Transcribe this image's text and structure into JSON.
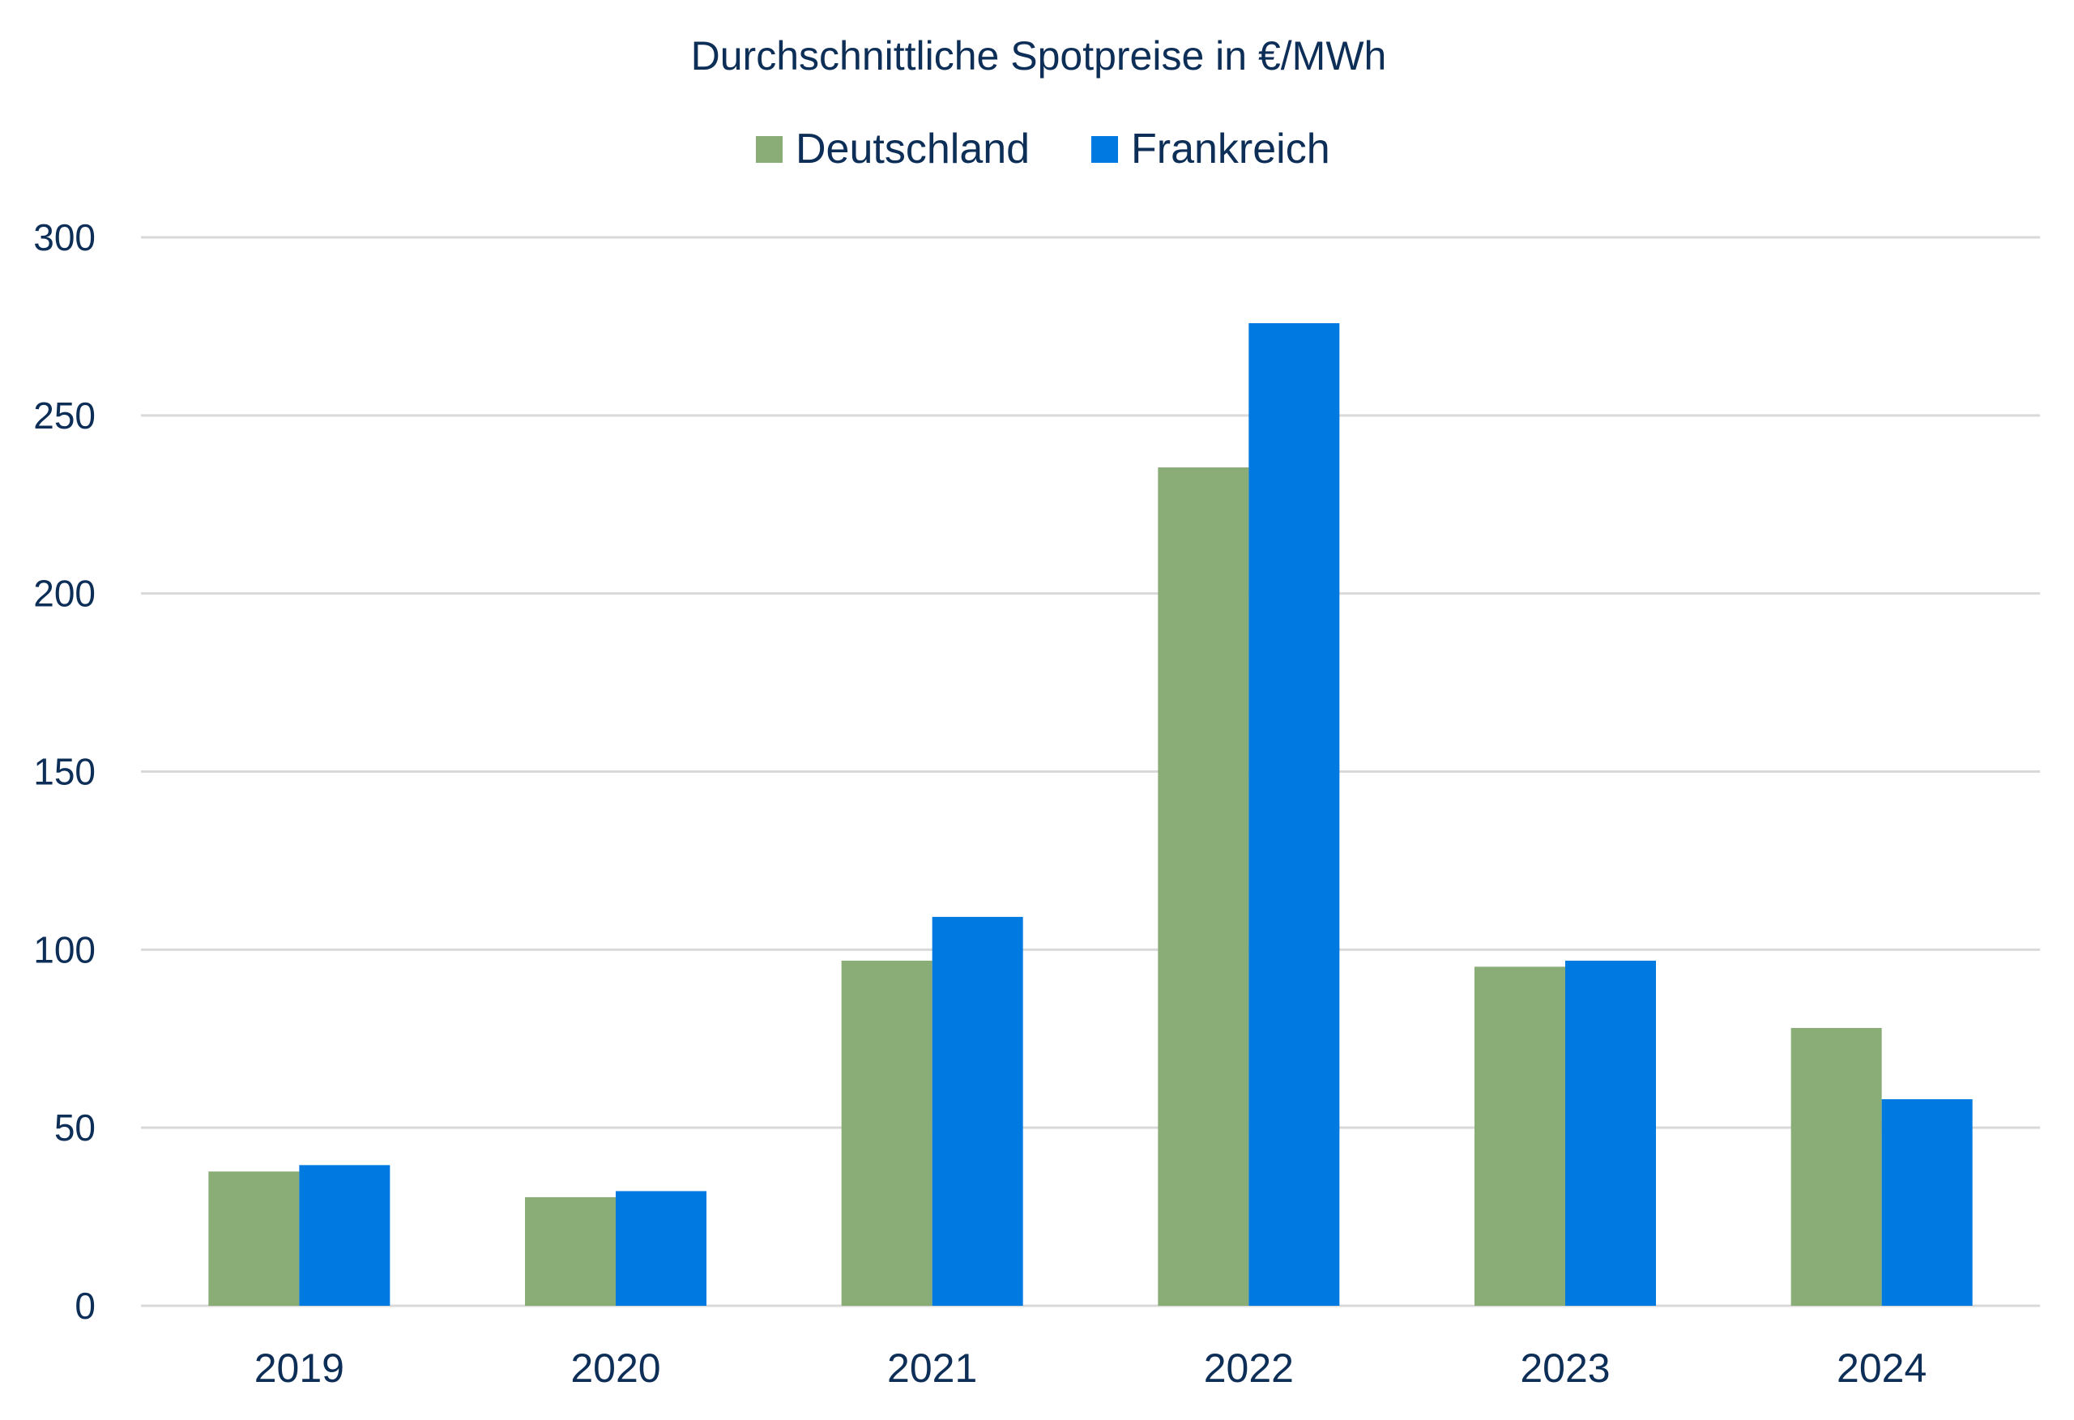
{
  "chart_data": {
    "type": "bar",
    "title": "Durchschnittliche Spotpreise in €/MWh",
    "xlabel": "",
    "ylabel": "",
    "categories": [
      "2019",
      "2020",
      "2021",
      "2022",
      "2023",
      "2024"
    ],
    "series": [
      {
        "name": "Deutschland",
        "color": "#8aac76",
        "values": [
          37.7,
          30.5,
          96.9,
          235.4,
          95.2,
          78.0
        ]
      },
      {
        "name": "Frankreich",
        "color": "#0079e0",
        "values": [
          39.5,
          32.2,
          109.2,
          275.9,
          96.9,
          58.0
        ]
      }
    ],
    "ylim": [
      0,
      300
    ],
    "yticks": [
      "0",
      "50",
      "100",
      "150",
      "200",
      "250",
      "300"
    ],
    "grid": true,
    "legend": "top-center"
  }
}
